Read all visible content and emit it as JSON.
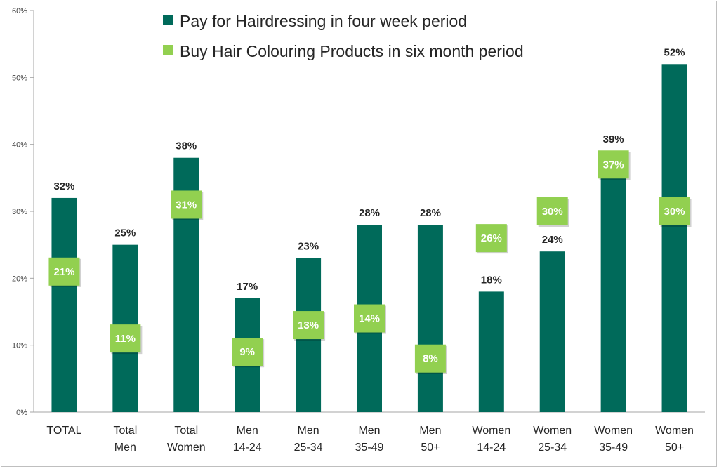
{
  "colors": {
    "series1": "#006a5a",
    "series2": "#92d050",
    "axis": "#a6a6a6",
    "text": "#262626"
  },
  "chart_data": {
    "type": "bar",
    "categories": [
      [
        "TOTAL"
      ],
      [
        "Total",
        "Men"
      ],
      [
        "Total",
        "Women"
      ],
      [
        "Men",
        "14-24"
      ],
      [
        "Men",
        "25-34"
      ],
      [
        "Men",
        "35-49"
      ],
      [
        "Men",
        "50+"
      ],
      [
        "Women",
        "14-24"
      ],
      [
        "Women",
        "25-34"
      ],
      [
        "Women",
        "35-49"
      ],
      [
        "Women",
        "50+"
      ]
    ],
    "series": [
      {
        "name": "Pay for Hairdressing in four week period",
        "render": "bar",
        "values": [
          32,
          25,
          38,
          17,
          23,
          28,
          28,
          18,
          24,
          39,
          52
        ],
        "labels": [
          "32%",
          "25%",
          "38%",
          "17%",
          "23%",
          "28%",
          "28%",
          "18%",
          "24%",
          "39%",
          "52%"
        ]
      },
      {
        "name": "Buy Hair Colouring Products in six month period",
        "render": "marker",
        "values": [
          21,
          11,
          31,
          9,
          13,
          14,
          8,
          26,
          30,
          37,
          30
        ],
        "labels": [
          "21%",
          "11%",
          "31%",
          "9%",
          "13%",
          "14%",
          "8%",
          "26%",
          "30%",
          "37%",
          "30%"
        ]
      }
    ],
    "ylim": [
      0,
      60
    ],
    "yticks": [
      "0%",
      "10%",
      "20%",
      "30%",
      "40%",
      "50%",
      "60%"
    ],
    "grid": false,
    "legend_position": "top"
  }
}
